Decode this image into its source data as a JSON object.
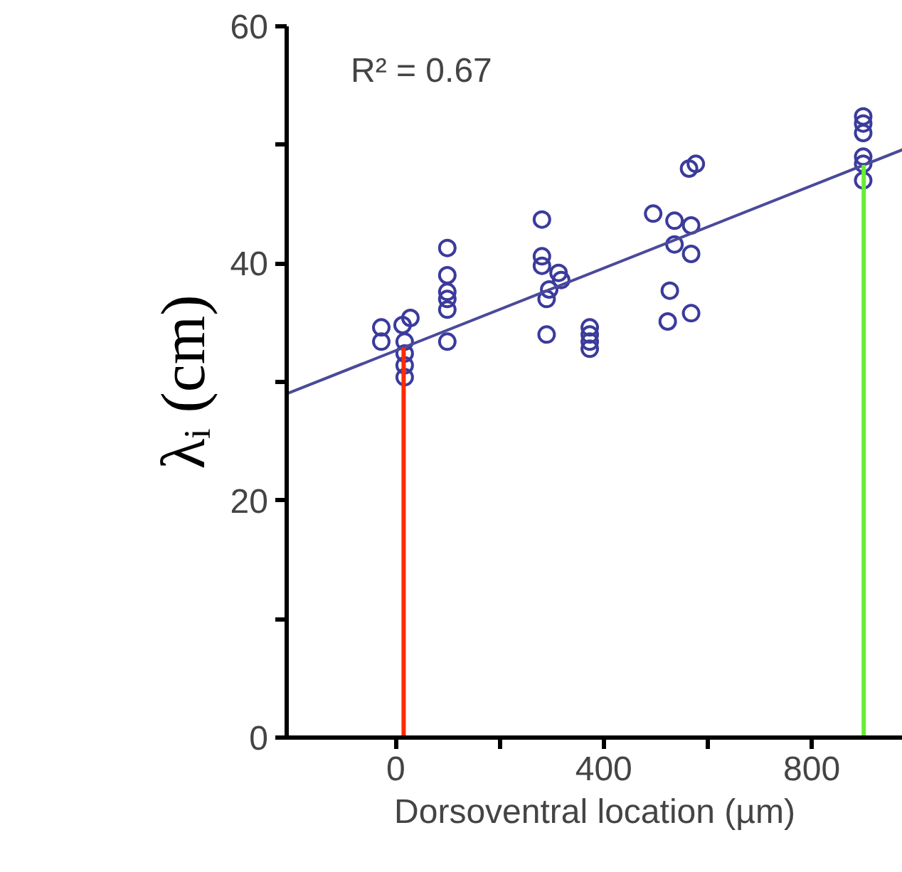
{
  "chart_data": {
    "type": "scatter",
    "xlabel": "Dorsoventral location (µm)",
    "ylabel": "λᵢ (cm)",
    "annotations": [
      "R² = 0.67"
    ],
    "xlim": [
      -210,
      975
    ],
    "ylim": [
      0,
      60
    ],
    "xticks": [
      0,
      {
        "value": 200,
        "label": null
      },
      400,
      {
        "value": 600,
        "label": null
      },
      800
    ],
    "yticks": [
      0,
      {
        "value": 10,
        "label": null
      },
      20,
      {
        "value": 30,
        "label": null
      },
      40,
      {
        "value": 50,
        "label": null
      },
      60
    ],
    "grid": false,
    "series": [
      {
        "marker": "circle",
        "color": "#3b3b9c",
        "x": [
          -28,
          -28,
          13,
          28,
          17,
          17,
          17,
          17,
          99,
          99,
          99,
          99,
          99,
          99,
          281,
          281,
          281,
          313,
          318,
          295,
          290,
          290,
          373,
          373,
          373,
          373,
          495,
          536,
          568,
          536,
          568,
          527,
          523,
          568,
          564,
          577,
          899,
          899,
          899,
          899,
          899,
          899
        ],
        "values": [
          34.6,
          33.4,
          34.8,
          35.4,
          33.4,
          32.4,
          31.4,
          30.4,
          41.3,
          39.0,
          37.6,
          37.0,
          36.1,
          33.4,
          43.7,
          40.6,
          39.8,
          39.2,
          38.6,
          37.8,
          37.0,
          34.0,
          34.6,
          34.0,
          33.4,
          32.8,
          44.2,
          43.6,
          43.2,
          41.6,
          40.8,
          37.7,
          35.1,
          35.8,
          48.0,
          48.4,
          52.4,
          51.8,
          51.0,
          49.0,
          48.4,
          47.0
        ]
      },
      {
        "type": "line",
        "color": "#4a4a9a",
        "x": [
          -210,
          975
        ],
        "values": [
          29.0,
          49.6
        ]
      },
      {
        "type": "line",
        "color": "#ff2a00",
        "x": [
          15,
          15
        ],
        "values": [
          0,
          32.9
        ]
      },
      {
        "type": "line",
        "color": "#66ee33",
        "x": [
          900,
          900
        ],
        "values": [
          0,
          48.3
        ]
      }
    ]
  }
}
